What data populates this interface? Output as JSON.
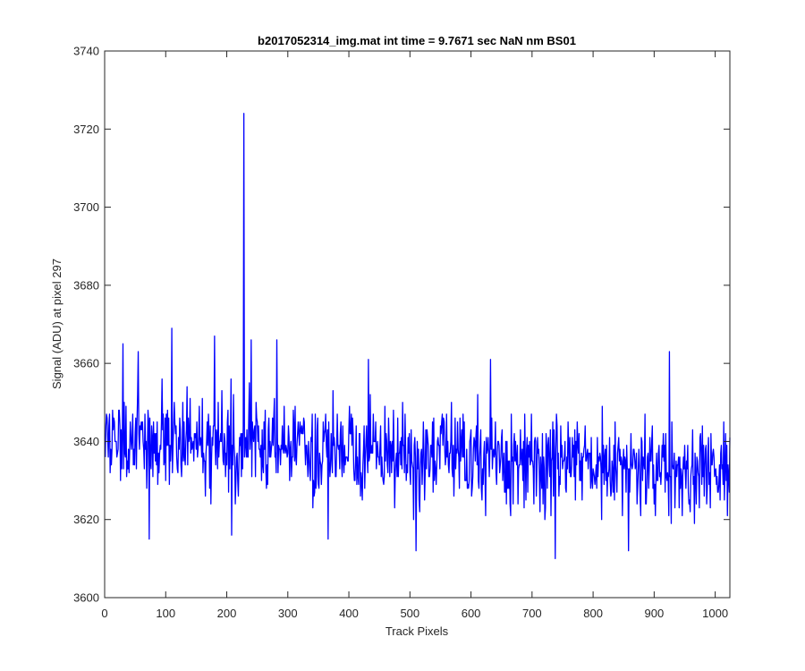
{
  "chart_data": {
    "type": "line",
    "title": "b2017052314_img.mat int time = 9.7671 sec  NaN nm BS01",
    "xlabel": "Track Pixels",
    "ylabel": "Signal (ADU) at pixel 297",
    "xlim": [
      0,
      1024
    ],
    "ylim": [
      3600,
      3740
    ],
    "xticks": [
      0,
      100,
      200,
      300,
      400,
      500,
      600,
      700,
      800,
      900,
      1000
    ],
    "yticks": [
      3600,
      3620,
      3640,
      3660,
      3680,
      3700,
      3720,
      3740
    ],
    "grid": false,
    "line_color": "#0000ff",
    "n_points": 1024,
    "baseline_start": 3641,
    "baseline_end": 3632,
    "noise_std": 6,
    "spikes": [
      {
        "x": 30,
        "y": 3665
      },
      {
        "x": 55,
        "y": 3663
      },
      {
        "x": 73,
        "y": 3615
      },
      {
        "x": 110,
        "y": 3669
      },
      {
        "x": 180,
        "y": 3667
      },
      {
        "x": 208,
        "y": 3616
      },
      {
        "x": 228,
        "y": 3724
      },
      {
        "x": 240,
        "y": 3666
      },
      {
        "x": 282,
        "y": 3666
      },
      {
        "x": 366,
        "y": 3615
      },
      {
        "x": 432,
        "y": 3661
      },
      {
        "x": 510,
        "y": 3612
      },
      {
        "x": 632,
        "y": 3661
      },
      {
        "x": 738,
        "y": 3610
      },
      {
        "x": 858,
        "y": 3612
      },
      {
        "x": 925,
        "y": 3663
      },
      {
        "x": 1020,
        "y": 3621
      }
    ]
  }
}
